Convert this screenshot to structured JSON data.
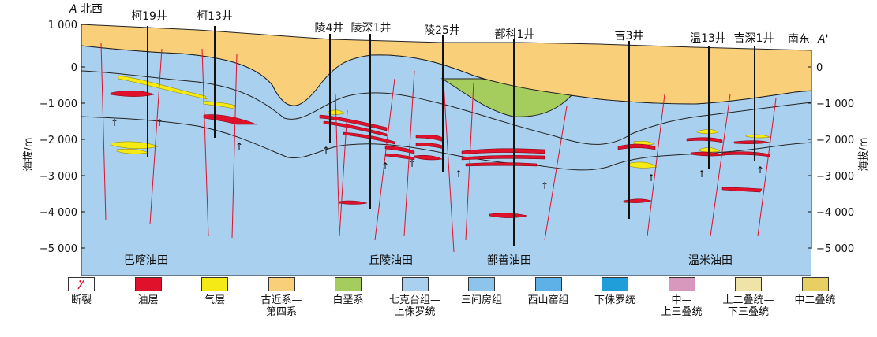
{
  "section": {
    "left_end": "A",
    "left_direction": "北西",
    "right_end": "A'",
    "right_direction": "南东",
    "axis_title": "海拔/m",
    "y_ticks": [
      "1 000",
      "0",
      "−1 000",
      "−2 000",
      "−3 000",
      "−4 000",
      "−5 000"
    ],
    "wells": [
      "柯19井",
      "柯13井",
      "陵4井",
      "陵深1井",
      "陵25井",
      "鄯科1井",
      "吉3井",
      "温13井",
      "吉深1井"
    ],
    "oilfields": [
      "巴喀油田",
      "丘陵油田",
      "鄯善油田",
      "温米油田"
    ]
  },
  "legend": [
    {
      "label": "断裂",
      "color": "#ffffff"
    },
    {
      "label": "油层",
      "color": "#e0112b"
    },
    {
      "label": "气层",
      "color": "#f5ea14"
    },
    {
      "label": "古近系—\n第四系",
      "color": "#f9cf7a"
    },
    {
      "label": "白垩系",
      "color": "#a5cd5e"
    },
    {
      "label": "七克台组—\n上侏罗统",
      "color": "#a9d0ee"
    },
    {
      "label": "三间房组",
      "color": "#8cc4ec"
    },
    {
      "label": "西山窑组",
      "color": "#5eb1e6"
    },
    {
      "label": "下侏罗统",
      "color": "#1f9ed9"
    },
    {
      "label": "中—\n上三叠统",
      "color": "#d897bd"
    },
    {
      "label": "上二叠统—\n下三叠统",
      "color": "#efe3a7"
    },
    {
      "label": "中二叠统",
      "color": "#e7cf64"
    }
  ]
}
